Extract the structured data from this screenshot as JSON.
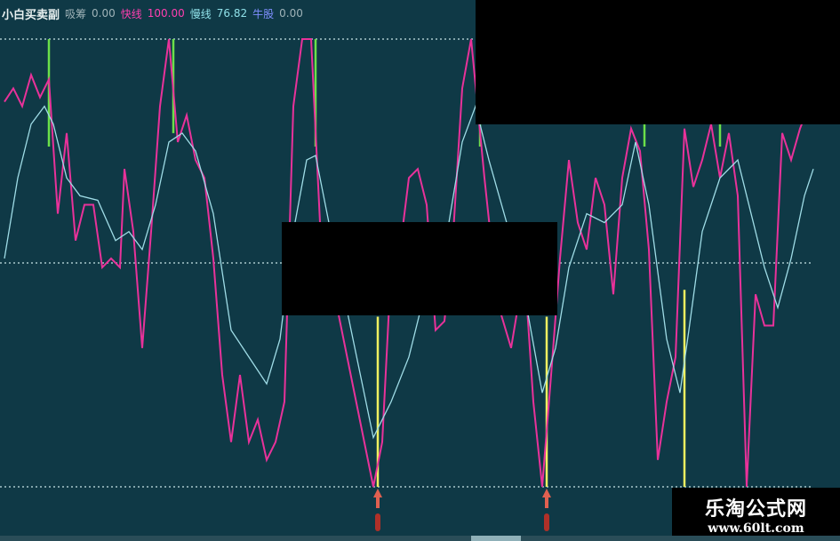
{
  "header": {
    "title": "小白买卖副",
    "items": [
      {
        "label": "吸筹",
        "value": "0.00",
        "color": "#9fb3b8"
      },
      {
        "label": "快线",
        "value": "100.00",
        "color": "#ff3fb0"
      },
      {
        "label": "慢线",
        "value": "76.82",
        "color": "#8fe0e8"
      },
      {
        "label": "牛股",
        "value": "0.00",
        "color": "#7f8fff"
      }
    ]
  },
  "watermark": {
    "name": "乐淘公式网",
    "url": "www.60lt.com"
  },
  "chart_data": {
    "type": "line",
    "ylim": [
      0,
      100
    ],
    "reference_lines": [
      0,
      50,
      100
    ],
    "background": "#0f3946",
    "series": [
      {
        "color": "#e8329a",
        "x": [
          1,
          3,
          5,
          7,
          9,
          11,
          13,
          15,
          17,
          19,
          21,
          23,
          25,
          27,
          28,
          30,
          32,
          34,
          36,
          38,
          40,
          42,
          44,
          46,
          48,
          50,
          52,
          54,
          56,
          58,
          60,
          62,
          64,
          66,
          68,
          70,
          72,
          84,
          86,
          88,
          90,
          92,
          94,
          96,
          98,
          100,
          102,
          104,
          106,
          109,
          112,
          115,
          118,
          120,
          122,
          124,
          126,
          128,
          130,
          132,
          134,
          136,
          138,
          140,
          142,
          144,
          146,
          148,
          150,
          152,
          154,
          156,
          158,
          160,
          162,
          164,
          166,
          168,
          170,
          172,
          174,
          176,
          178,
          180,
          182
        ],
        "values": [
          86,
          89,
          85,
          92,
          87,
          91,
          61,
          79,
          55,
          63,
          63,
          49,
          51,
          49,
          71,
          57,
          31,
          57,
          85,
          100,
          77,
          83,
          73,
          69,
          51,
          25,
          10,
          25,
          10,
          15,
          6,
          10,
          19,
          85,
          100,
          100,
          59,
          0,
          10,
          49,
          53,
          69,
          71,
          63,
          35,
          37,
          57,
          89,
          100,
          69,
          41,
          31,
          49,
          19,
          0,
          25,
          51,
          73,
          59,
          53,
          69,
          63,
          43,
          69,
          80,
          75,
          53,
          6,
          19,
          29,
          80,
          67,
          73,
          81,
          69,
          79,
          65,
          0,
          43,
          36,
          36,
          79,
          73,
          80,
          85
        ]
      },
      {
        "color": "#9fdce6",
        "x": [
          1,
          4,
          7,
          10,
          12,
          15,
          18,
          22,
          26,
          29,
          32,
          35,
          38,
          41,
          44,
          48,
          52,
          56,
          60,
          63,
          66,
          69,
          71,
          74,
          84,
          88,
          92,
          96,
          100,
          104,
          107,
          110,
          114,
          118,
          122,
          125,
          128,
          132,
          136,
          140,
          143,
          146,
          150,
          153,
          155,
          158,
          162,
          166,
          169,
          172,
          175,
          178,
          181,
          183
        ],
        "values": [
          51,
          69,
          81,
          85,
          81,
          69,
          65,
          64,
          55,
          57,
          53,
          63,
          77,
          79,
          75,
          61,
          35,
          29,
          23,
          33,
          57,
          73,
          74,
          59,
          11,
          19,
          29,
          45,
          53,
          77,
          85,
          73,
          59,
          43,
          21,
          31,
          49,
          61,
          59,
          63,
          77,
          63,
          33,
          21,
          35,
          57,
          69,
          73,
          61,
          49,
          40,
          51,
          65,
          71
        ]
      }
    ],
    "sell_signals": {
      "color": "#6be04a",
      "x": [
        11,
        39,
        71,
        108,
        145,
        162
      ],
      "from": 100,
      "to": [
        76,
        79,
        76,
        76,
        76,
        76
      ]
    },
    "buy_signals": {
      "color": "#f0f060",
      "x": [
        85,
        123,
        154
      ],
      "from": 0,
      "to": [
        38,
        38,
        44
      ]
    },
    "buy_arrows": {
      "color": "#e06050",
      "x": [
        85,
        123
      ]
    }
  }
}
